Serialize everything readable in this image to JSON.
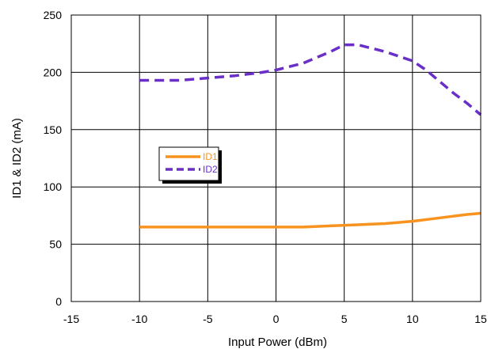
{
  "chart_data": {
    "type": "line",
    "title": "",
    "xlabel": "Input Power (dBm)",
    "ylabel": "ID1 & ID2 (mA)",
    "xlim": [
      -15,
      15
    ],
    "ylim": [
      0,
      250
    ],
    "xticks": [
      -15,
      -10,
      -5,
      0,
      5,
      10,
      15
    ],
    "yticks": [
      0,
      50,
      100,
      150,
      200,
      250
    ],
    "grid": true,
    "legend_position": "center-left",
    "series": [
      {
        "name": "ID1",
        "color": "#f7931e",
        "dash": "solid",
        "x": [
          -10,
          -8,
          -6,
          -4,
          -2,
          0,
          2,
          4,
          6,
          8,
          10,
          12,
          14,
          15
        ],
        "y": [
          65,
          65,
          65,
          65,
          65,
          65,
          65,
          66,
          67,
          68,
          70,
          73,
          76,
          77
        ]
      },
      {
        "name": "ID2",
        "color": "#6a2fc8",
        "dash": "dashed",
        "x": [
          -10,
          -7,
          -5,
          -3,
          -1,
          0,
          2,
          4,
          5,
          6,
          8,
          10,
          11,
          12,
          13,
          14,
          15
        ],
        "y": [
          193,
          193,
          195,
          197,
          200,
          202,
          208,
          218,
          224,
          224,
          218,
          210,
          202,
          192,
          182,
          173,
          163
        ]
      }
    ]
  }
}
